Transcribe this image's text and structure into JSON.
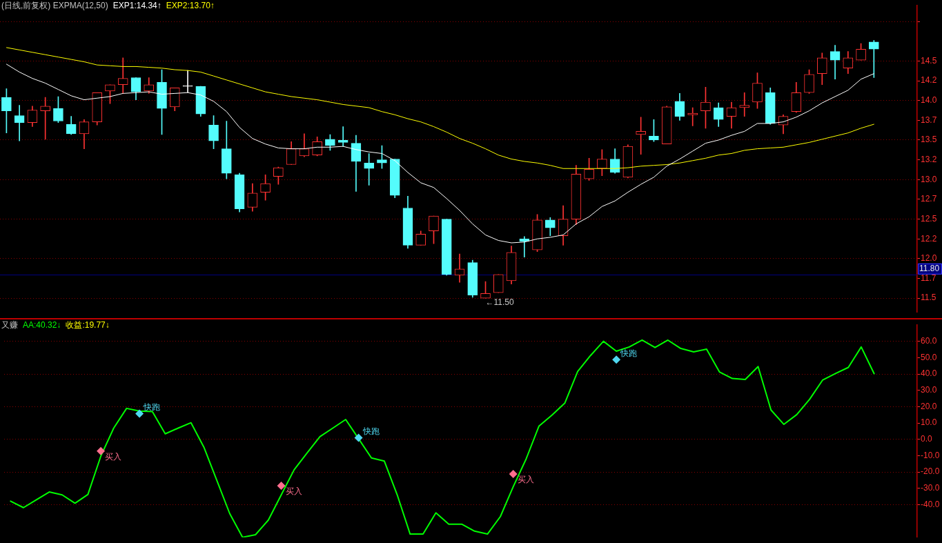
{
  "chart_data": [
    {
      "type": "candlestick",
      "title": "(日线,前复权) EXPMA(12,50)",
      "categories": [
        null,
        null,
        null,
        null,
        null,
        null,
        null,
        null,
        null,
        null,
        null,
        null,
        null,
        null,
        null,
        null,
        null,
        null,
        null,
        null,
        null,
        null,
        null,
        null,
        null,
        null,
        null,
        null,
        null,
        null,
        null,
        null,
        null,
        null,
        null,
        null,
        null,
        null,
        null,
        null,
        null,
        null,
        null,
        null,
        null,
        null,
        null,
        null,
        null,
        null,
        null,
        null,
        null,
        null,
        null,
        null,
        null,
        null,
        null,
        null,
        null,
        null,
        null,
        null,
        null,
        null,
        null,
        null
      ],
      "ohlc": [
        [
          14.04,
          14.15,
          13.59,
          13.87
        ],
        [
          13.81,
          13.94,
          13.49,
          13.72
        ],
        [
          13.72,
          13.93,
          13.67,
          13.88
        ],
        [
          13.87,
          14.04,
          13.51,
          13.93
        ],
        [
          13.9,
          14.05,
          13.72,
          13.74
        ],
        [
          13.7,
          13.8,
          13.57,
          13.58
        ],
        [
          13.58,
          13.76,
          13.39,
          13.73
        ],
        [
          13.73,
          14.1,
          13.69,
          14.1
        ],
        [
          14.12,
          14.2,
          13.96,
          14.2
        ],
        [
          14.2,
          14.54,
          14.09,
          14.28
        ],
        [
          14.29,
          14.29,
          14.01,
          14.11
        ],
        [
          14.12,
          14.29,
          14.09,
          14.2
        ],
        [
          14.23,
          14.39,
          13.57,
          13.9
        ],
        [
          13.92,
          14.16,
          13.87,
          14.16
        ],
        [
          14.18,
          14.38,
          14.1,
          14.18
        ],
        [
          14.18,
          14.18,
          13.8,
          13.83
        ],
        [
          13.69,
          13.81,
          13.39,
          13.49
        ],
        [
          13.39,
          13.74,
          13.01,
          13.08
        ],
        [
          13.06,
          13.08,
          12.59,
          12.63
        ],
        [
          12.65,
          12.95,
          12.6,
          12.83
        ],
        [
          12.84,
          13.06,
          12.74,
          12.95
        ],
        [
          13.04,
          13.16,
          12.94,
          13.15
        ],
        [
          13.19,
          13.48,
          13.19,
          13.39
        ],
        [
          13.3,
          13.58,
          13.29,
          13.39
        ],
        [
          13.31,
          13.54,
          13.3,
          13.48
        ],
        [
          13.51,
          13.57,
          13.37,
          13.43
        ],
        [
          13.5,
          13.67,
          13.42,
          13.47
        ],
        [
          13.46,
          13.56,
          12.85,
          13.23
        ],
        [
          13.21,
          13.33,
          12.93,
          13.14
        ],
        [
          13.25,
          13.43,
          13.14,
          13.21
        ],
        [
          13.26,
          13.26,
          12.77,
          12.8
        ],
        [
          12.64,
          12.79,
          12.13,
          12.17
        ],
        [
          12.17,
          12.35,
          12.17,
          12.31
        ],
        [
          12.35,
          12.54,
          12.19,
          12.54
        ],
        [
          12.5,
          12.5,
          11.79,
          11.8
        ],
        [
          11.79,
          12.06,
          11.7,
          11.87
        ],
        [
          11.95,
          11.98,
          11.51,
          11.54
        ],
        [
          11.5,
          11.71,
          11.5,
          11.56
        ],
        [
          11.57,
          11.8,
          11.57,
          11.8
        ],
        [
          11.72,
          12.16,
          11.68,
          12.08
        ],
        [
          12.25,
          12.28,
          12.02,
          12.22
        ],
        [
          12.11,
          12.56,
          12.09,
          12.49
        ],
        [
          12.49,
          12.52,
          12.29,
          12.39
        ],
        [
          12.29,
          12.67,
          12.17,
          12.5
        ],
        [
          12.5,
          13.18,
          12.43,
          13.07
        ],
        [
          13.01,
          13.27,
          12.99,
          13.13
        ],
        [
          13.14,
          13.38,
          13.05,
          13.26
        ],
        [
          13.26,
          13.39,
          13.08,
          13.09
        ],
        [
          13.03,
          13.44,
          13.02,
          13.42
        ],
        [
          13.57,
          13.79,
          13.32,
          13.61
        ],
        [
          13.55,
          13.76,
          13.48,
          13.5
        ],
        [
          13.45,
          13.93,
          13.45,
          13.92
        ],
        [
          13.99,
          14.09,
          13.75,
          13.8
        ],
        [
          13.82,
          13.91,
          13.68,
          13.84
        ],
        [
          13.87,
          14.17,
          13.65,
          13.98
        ],
        [
          13.91,
          13.97,
          13.67,
          13.76
        ],
        [
          13.8,
          13.98,
          13.65,
          13.91
        ],
        [
          13.91,
          14.1,
          13.8,
          13.94
        ],
        [
          13.98,
          14.35,
          13.9,
          14.22
        ],
        [
          14.1,
          14.16,
          13.7,
          13.71
        ],
        [
          13.69,
          13.82,
          13.58,
          13.8
        ],
        [
          13.86,
          14.23,
          13.85,
          14.1
        ],
        [
          14.1,
          14.39,
          14.09,
          14.33
        ],
        [
          14.34,
          14.6,
          14.2,
          14.54
        ],
        [
          14.62,
          14.7,
          14.27,
          14.51
        ],
        [
          14.41,
          14.62,
          14.34,
          14.54
        ],
        [
          14.51,
          14.72,
          14.51,
          14.65
        ],
        [
          14.74,
          14.76,
          14.29,
          14.65
        ]
      ],
      "colors": [
        "#54fcfc",
        "#54fcfc",
        "#ff3232",
        "#ff3232",
        "#54fcfc",
        "#54fcfc",
        "#ff3232",
        "#ff3232",
        "#ff3232",
        "#ff3232",
        "#54fcfc",
        "#ff3232",
        "#54fcfc",
        "#ff3232",
        "#ffffff",
        "#54fcfc",
        "#54fcfc",
        "#54fcfc",
        "#54fcfc",
        "#ff3232",
        "#ff3232",
        "#ff3232",
        "#ff3232",
        "#ff3232",
        "#ff3232",
        "#54fcfc",
        "#54fcfc",
        "#54fcfc",
        "#54fcfc",
        "#54fcfc",
        "#54fcfc",
        "#54fcfc",
        "#ff3232",
        "#ff3232",
        "#54fcfc",
        "#ff3232",
        "#54fcfc",
        "#ff3232",
        "#ff3232",
        "#ff3232",
        "#54fcfc",
        "#ff3232",
        "#54fcfc",
        "#ff3232",
        "#ff3232",
        "#ff3232",
        "#ff3232",
        "#54fcfc",
        "#ff3232",
        "#ff3232",
        "#54fcfc",
        "#ff3232",
        "#54fcfc",
        "#ff3232",
        "#ff3232",
        "#54fcfc",
        "#ff3232",
        "#ff3232",
        "#ff3232",
        "#54fcfc",
        "#ff3232",
        "#ff3232",
        "#ff3232",
        "#ff3232",
        "#54fcfc",
        "#ff3232",
        "#ff3232",
        "#54fcfc"
      ],
      "series": [
        {
          "name": "EXP1:14.34↑",
          "type": "line",
          "color": "#ffffff",
          "values": [
            14.46,
            14.36,
            14.28,
            14.22,
            14.14,
            14.06,
            14.01,
            14.03,
            14.05,
            14.09,
            14.1,
            14.11,
            14.08,
            14.09,
            14.1,
            14.07,
            13.99,
            13.86,
            13.66,
            13.52,
            13.45,
            13.4,
            13.39,
            13.39,
            13.41,
            13.41,
            13.42,
            13.38,
            13.35,
            13.33,
            13.24,
            13.09,
            12.96,
            12.9,
            12.76,
            12.61,
            12.44,
            12.3,
            12.23,
            12.2,
            12.21,
            12.25,
            12.27,
            12.3,
            12.44,
            12.53,
            12.66,
            12.73,
            12.84,
            12.94,
            13.03,
            13.17,
            13.26,
            13.36,
            13.46,
            13.5,
            13.56,
            13.61,
            13.71,
            13.71,
            13.73,
            13.79,
            13.87,
            13.97,
            14.05,
            14.13,
            14.27,
            14.34
          ]
        },
        {
          "name": "EXP2:13.70↑",
          "type": "line",
          "color": "#ffff00",
          "values": [
            14.67,
            14.64,
            14.61,
            14.58,
            14.55,
            14.52,
            14.49,
            14.45,
            14.44,
            14.43,
            14.43,
            14.42,
            14.41,
            14.39,
            14.38,
            14.36,
            14.31,
            14.26,
            14.21,
            14.16,
            14.11,
            14.08,
            14.05,
            14.03,
            14.01,
            13.98,
            13.95,
            13.93,
            13.91,
            13.86,
            13.82,
            13.77,
            13.73,
            13.67,
            13.6,
            13.52,
            13.46,
            13.39,
            13.31,
            13.26,
            13.23,
            13.21,
            13.18,
            13.14,
            13.14,
            13.14,
            13.14,
            13.14,
            13.15,
            13.17,
            13.18,
            13.19,
            13.21,
            13.24,
            13.27,
            13.31,
            13.33,
            13.37,
            13.39,
            13.4,
            13.41,
            13.44,
            13.47,
            13.51,
            13.55,
            13.59,
            13.65,
            13.7
          ]
        }
      ],
      "ylim": [
        11.32,
        15.2
      ],
      "yticks": [
        11.5,
        {
          "value": 11.75,
          "label": "11.7"
        },
        {
          "value": 12,
          "label": "12.0"
        },
        {
          "value": 12.25,
          "label": "12.2"
        },
        12.5,
        {
          "value": 12.75,
          "label": "12.7"
        },
        {
          "value": 13,
          "label": "13.0"
        },
        {
          "value": 13.25,
          "label": "13.2"
        },
        13.5,
        {
          "value": 13.75,
          "label": "13.7"
        },
        {
          "value": 14,
          "label": "14.0"
        },
        {
          "value": 14.25,
          "label": "14.2"
        },
        14.5,
        {
          "value": 15,
          "label": null
        }
      ],
      "grid": "y",
      "ref_lines": [
        {
          "axis": "y",
          "value": 11.8,
          "label": "11.80",
          "color": "#000080"
        }
      ],
      "annotations": [
        "←11.50"
      ]
    },
    {
      "type": "line",
      "title": "又赚",
      "categories": [
        null,
        null,
        null,
        null,
        null,
        null,
        null,
        null,
        null,
        null,
        null,
        null,
        null,
        null,
        null,
        null,
        null,
        null,
        null,
        null,
        null,
        null,
        null,
        null,
        null,
        null,
        null,
        null,
        null,
        null,
        null,
        null,
        null,
        null,
        null,
        null,
        null,
        null,
        null,
        null,
        null,
        null,
        null,
        null,
        null,
        null,
        null,
        null,
        null,
        null,
        null,
        null,
        null,
        null,
        null,
        null,
        null,
        null,
        null,
        null,
        null,
        null,
        null,
        null,
        null,
        null,
        null,
        null
      ],
      "series": [
        {
          "name": "AA:40.32↓",
          "color": "#00ff00",
          "values": [
            -37.8,
            -41.8,
            -37,
            -32.2,
            -34,
            -39.1,
            -33.7,
            -10.3,
            6.9,
            19,
            17.4,
            17,
            3.4,
            6.9,
            10.2,
            -4.8,
            -25.1,
            -45.4,
            -60,
            -58.4,
            -49.4,
            -34,
            -18.6,
            -8.4,
            1.7,
            6.9,
            12.2,
            0.4,
            -11.4,
            -13.3,
            -34,
            -58,
            -58,
            -45,
            -51.9,
            -51.9,
            -56.2,
            -58,
            -47.3,
            -29,
            -12,
            8.2,
            14.8,
            22.2,
            41.6,
            51.4,
            60.1,
            54,
            56.6,
            60.8,
            56.3,
            60.8,
            55.7,
            53.6,
            55.3,
            41.3,
            37.3,
            36.7,
            44.6,
            18,
            9.2,
            15.2,
            24.6,
            36.3,
            40.3,
            44.1,
            56.6,
            40.3
          ]
        },
        {
          "name": "买入",
          "type": "scatter",
          "color": "#ff6f8f",
          "marker": "diamond",
          "values": [
            null,
            null,
            null,
            null,
            null,
            null,
            null,
            -7.1,
            null,
            null,
            null,
            null,
            null,
            null,
            null,
            null,
            null,
            null,
            null,
            null,
            null,
            -28.4,
            null,
            null,
            null,
            null,
            null,
            null,
            null,
            null,
            null,
            null,
            null,
            null,
            null,
            null,
            null,
            null,
            null,
            -21.2,
            null,
            null,
            null,
            null,
            null,
            null,
            null,
            null,
            null,
            null,
            null,
            null,
            null,
            null,
            null,
            null,
            null,
            null,
            null,
            null,
            null,
            null,
            null,
            null,
            null,
            null,
            null,
            null
          ]
        },
        {
          "name": "快跑",
          "type": "scatter",
          "color": "#4fd8f0",
          "marker": "diamond",
          "values": [
            null,
            null,
            null,
            null,
            null,
            null,
            null,
            null,
            null,
            null,
            15.8,
            null,
            null,
            null,
            null,
            null,
            null,
            null,
            null,
            null,
            null,
            null,
            null,
            null,
            null,
            null,
            null,
            1,
            null,
            null,
            null,
            null,
            null,
            null,
            null,
            null,
            null,
            null,
            null,
            null,
            null,
            null,
            null,
            null,
            null,
            null,
            null,
            48.8,
            null,
            null,
            null,
            null,
            null,
            null,
            null,
            null,
            null,
            null,
            null,
            null,
            null,
            null,
            null,
            null,
            null,
            null,
            null,
            null
          ]
        }
      ],
      "ylim": [
        -60,
        70
      ],
      "yticks": [
        {
          "value": -40,
          "label": "-40.0"
        },
        {
          "value": -30,
          "label": "-30.0"
        },
        {
          "value": -20,
          "label": "-20.0"
        },
        {
          "value": -10,
          "label": "-10.0"
        },
        {
          "value": 0,
          "label": "0.0"
        },
        {
          "value": 10,
          "label": "10.0"
        },
        {
          "value": 20,
          "label": "20.0"
        },
        {
          "value": 30,
          "label": "30.0"
        },
        {
          "value": 40,
          "label": "40.0"
        },
        {
          "value": 50,
          "label": "50.0"
        },
        {
          "value": 60,
          "label": "60.0"
        }
      ],
      "grid": "y",
      "annotations": [
        "收益:19.77↓"
      ]
    }
  ]
}
